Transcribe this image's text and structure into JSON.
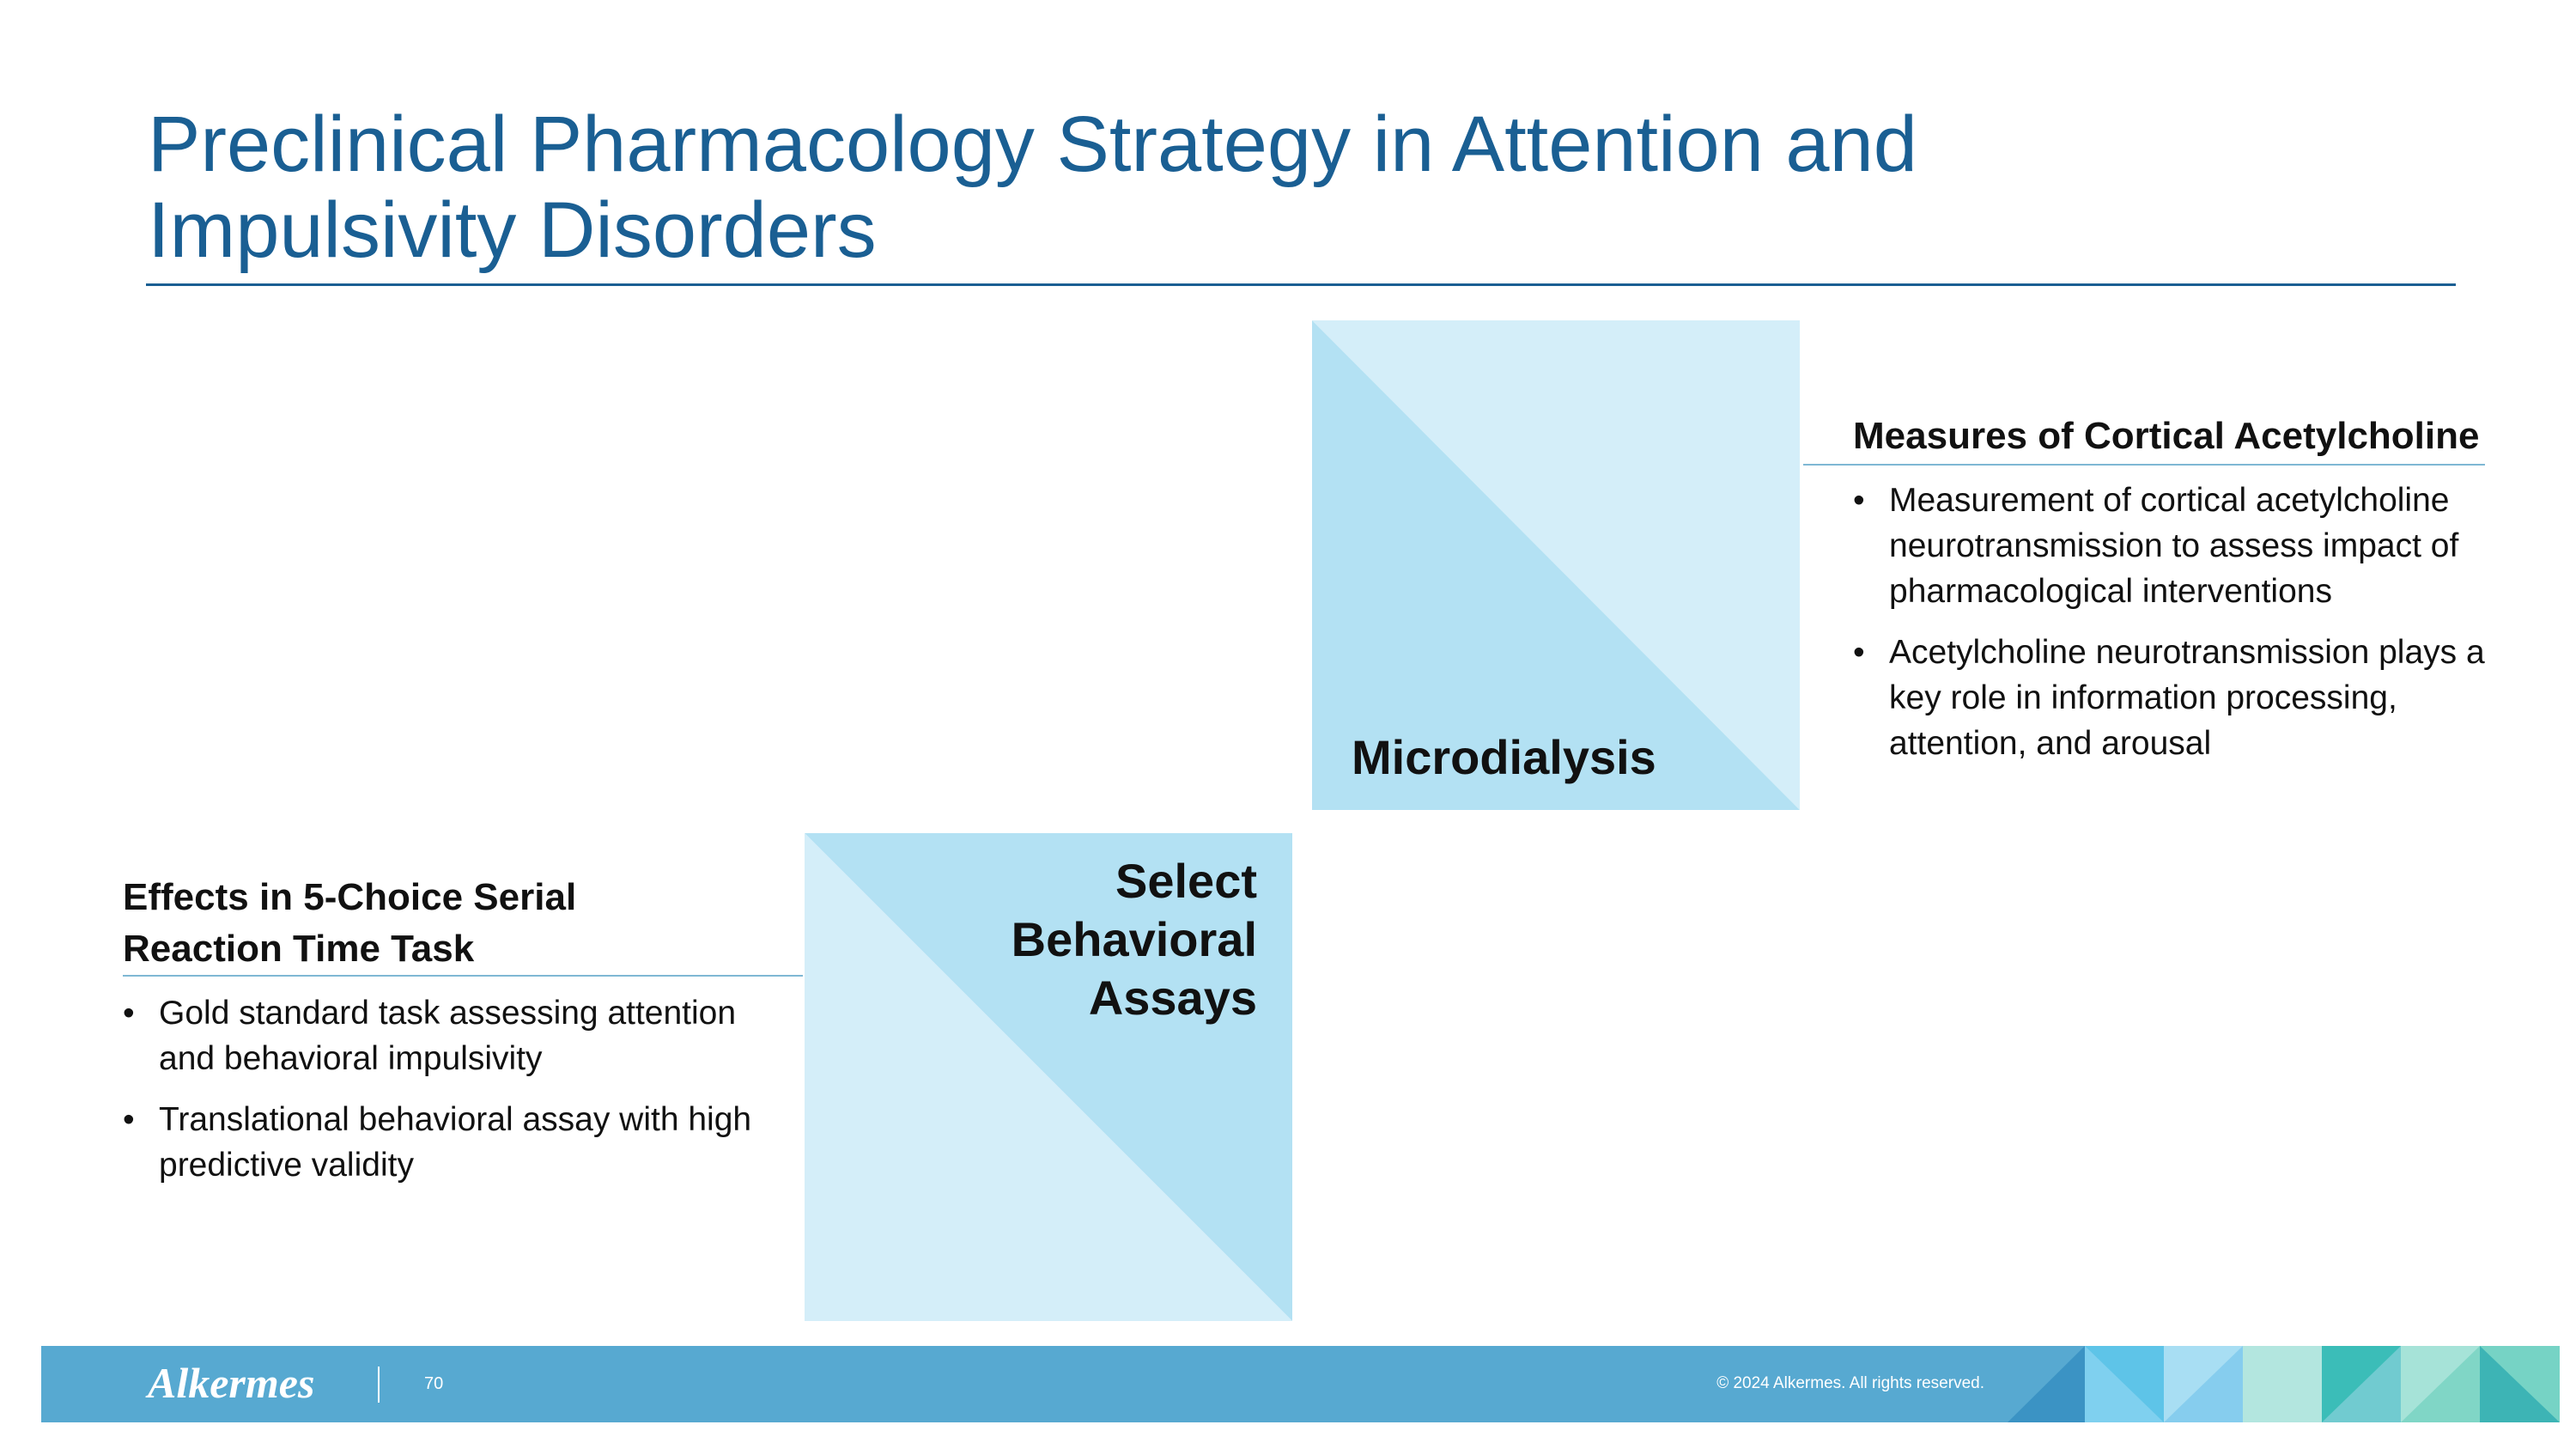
{
  "header": {
    "title": "Preclinical Pharmacology Strategy in Attention and Impulsivity Disorders"
  },
  "microdialysis": {
    "label": "Microdialysis",
    "heading": "Measures of Cortical Acetylcholine",
    "bullets": [
      "Measurement of cortical acetylcholine neurotransmission to assess impact of pharmacological interventions",
      "Acetylcholine neurotransmission plays a key role in information processing, attention, and arousal"
    ]
  },
  "behavioral": {
    "label": "Select Behavioral Assays",
    "heading": "Effects in 5-Choice Serial Reaction Time Task",
    "bullets": [
      "Gold standard task assessing attention and behavioral impulsivity",
      "Translational behavioral assay with high predictive validity"
    ]
  },
  "footer": {
    "logo": "Alkermes",
    "page": "70",
    "copyright": "© 2024 Alkermes. All rights reserved."
  }
}
